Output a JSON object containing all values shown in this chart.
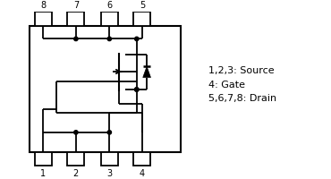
{
  "bg_color": "#ffffff",
  "line_color": "#000000",
  "legend_lines": [
    "1,2,3: Source",
    "4: Gate",
    "5,6,7,8: Drain"
  ],
  "pin_labels_bottom": [
    "1",
    "2",
    "3",
    "4"
  ],
  "pin_labels_top": [
    "8",
    "7",
    "6",
    "5"
  ],
  "figsize": [
    3.7,
    2.0
  ],
  "dpi": 100
}
